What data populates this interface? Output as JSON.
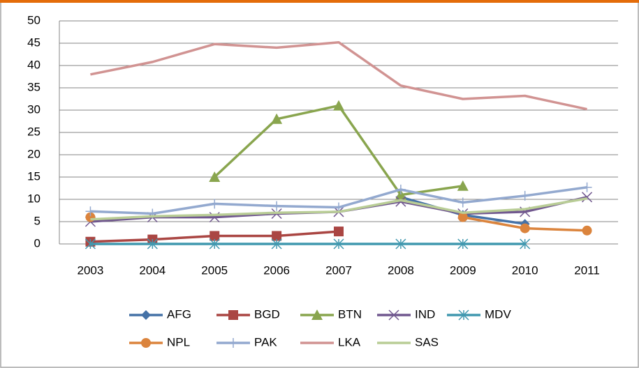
{
  "chart_data": {
    "type": "line",
    "categories": [
      "2003",
      "2004",
      "2005",
      "2006",
      "2007",
      "2008",
      "2009",
      "2010",
      "2011"
    ],
    "ylim": [
      0,
      50
    ],
    "yticks": [
      0,
      5,
      10,
      15,
      20,
      25,
      30,
      35,
      40,
      45,
      50
    ],
    "grid": true,
    "series": [
      {
        "name": "AFG",
        "color": "#4572a7",
        "marker": "diamond",
        "values": [
          null,
          null,
          null,
          null,
          null,
          10.5,
          6.5,
          4.5,
          null
        ]
      },
      {
        "name": "BGD",
        "color": "#aa4643",
        "marker": "square",
        "values": [
          0.5,
          1,
          1.8,
          1.8,
          2.8,
          null,
          null,
          null,
          null
        ]
      },
      {
        "name": "BTN",
        "color": "#89a54e",
        "marker": "triangle",
        "values": [
          null,
          null,
          15,
          28,
          31,
          11,
          13,
          null,
          null
        ]
      },
      {
        "name": "IND",
        "color": "#71588f",
        "marker": "x",
        "values": [
          5,
          6,
          6,
          6.8,
          7.2,
          9.5,
          6.8,
          7.2,
          10.5
        ]
      },
      {
        "name": "MDV",
        "color": "#4198af",
        "marker": "star",
        "values": [
          0,
          0,
          0,
          0,
          0,
          0,
          0,
          0,
          null
        ]
      },
      {
        "name": "NPL",
        "color": "#db843d",
        "marker": "circle",
        "values": [
          6,
          null,
          null,
          null,
          null,
          null,
          6,
          3.5,
          3
        ]
      },
      {
        "name": "PAK",
        "color": "#93a9cf",
        "marker": "plus",
        "values": [
          7.3,
          6.8,
          9,
          8.5,
          8.2,
          12.2,
          9.3,
          10.8,
          12.7
        ]
      },
      {
        "name": "LKA",
        "color": "#d19392",
        "marker": "none",
        "values": [
          38,
          40.8,
          44.8,
          44,
          45.2,
          35.5,
          32.5,
          33.2,
          30.2
        ]
      },
      {
        "name": "SAS",
        "color": "#b9cd96",
        "marker": "none",
        "values": [
          5.5,
          6.2,
          6.5,
          7,
          7.2,
          9.8,
          7,
          7.8,
          10.2
        ]
      }
    ]
  }
}
